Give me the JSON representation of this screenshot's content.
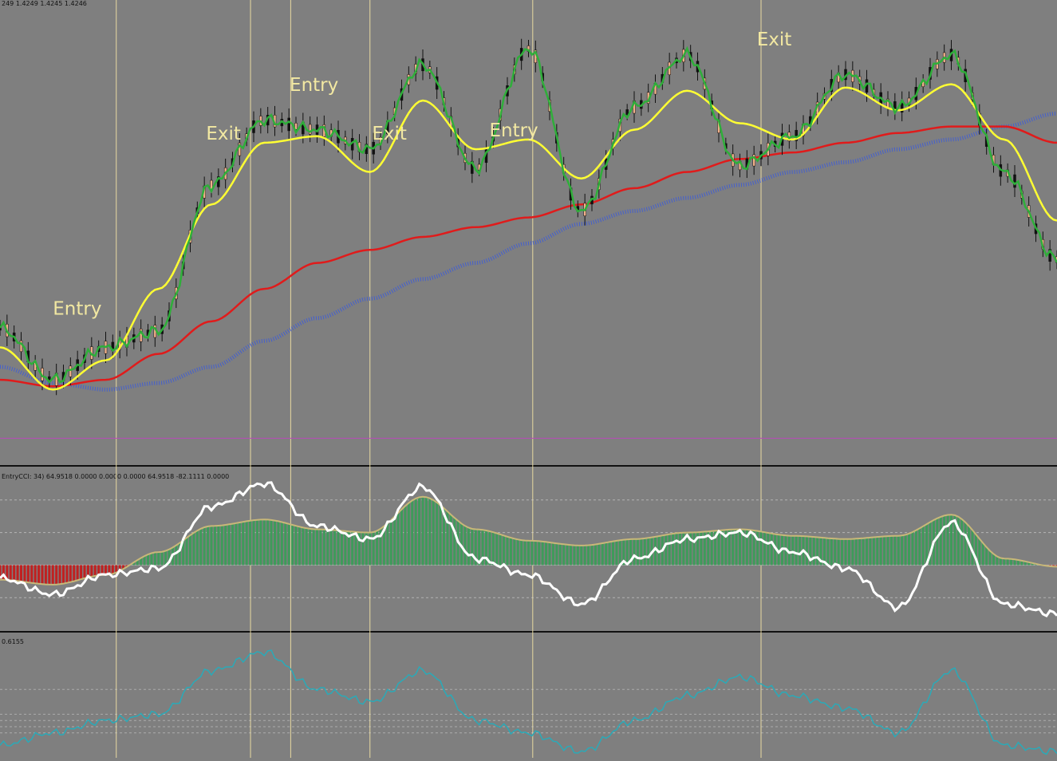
{
  "chart_data": {
    "type": "line",
    "header_text": "249 1.4249 1.4245 1.4246",
    "annotations": [
      "Entry",
      "Exit",
      "Entry",
      "Exit",
      "Entry",
      "Exit"
    ],
    "x": [
      0,
      5,
      10,
      15,
      20,
      25,
      30,
      35,
      40,
      45,
      50,
      55,
      60,
      65,
      70,
      75,
      80,
      85,
      90,
      95,
      100
    ],
    "colors": {
      "background": "#7f7f7f",
      "grid": "#d8d8d8",
      "separator": "#111111",
      "vertical_markers": "#e8d9a0",
      "price_fast_ma": "#2fae3a",
      "price_slow_ma": "#ffff33",
      "price_trend_ma": "#e01b1b",
      "price_dots_up": "#3b5bdb",
      "price_dots_down": "#e03030",
      "price_cyan_ma": "#35c3d9",
      "price_magenta_ma": "#cc33cc",
      "baseline": "#b84ab8",
      "cci_bars_up": "#3e9b5a",
      "cci_bars_down": "#c02020",
      "cci_outline": "#c8b878",
      "cci_line": "#ffffff",
      "osc_line": "#2aaab8",
      "text": "#f2e8a2"
    },
    "price_panel": {
      "series": [
        {
          "values": [
            1.4232,
            1.4216,
            1.4226,
            1.4231,
            1.4276,
            1.4296,
            1.4293,
            1.4287,
            1.4313,
            1.4281,
            1.4318,
            1.4268,
            1.43,
            1.4316,
            1.4282,
            1.4291,
            1.431,
            1.43,
            1.4316,
            1.428,
            1.4253
          ],
          "color": "#2fae3a"
        },
        {
          "values": [
            1.4226,
            1.4213,
            1.4222,
            1.4244,
            1.427,
            1.4289,
            1.4291,
            1.428,
            1.4302,
            1.4287,
            1.429,
            1.4278,
            1.4293,
            1.4305,
            1.4295,
            1.429,
            1.4306,
            1.4299,
            1.4307,
            1.429,
            1.4265
          ],
          "color": "#ffff33"
        },
        {
          "values": [
            1.4216,
            1.4214,
            1.4216,
            1.4224,
            1.4234,
            1.4244,
            1.4252,
            1.4256,
            1.426,
            1.4263,
            1.4266,
            1.427,
            1.4275,
            1.428,
            1.4284,
            1.4286,
            1.4289,
            1.4292,
            1.4294,
            1.4294,
            1.4289
          ],
          "color": "#e01b1b"
        },
        {
          "values": [
            1.422,
            1.4215,
            1.4213,
            1.4215,
            1.422,
            1.4228,
            1.4235,
            1.4241,
            1.4247,
            1.4252,
            1.4258,
            1.4264,
            1.4268,
            1.4272,
            1.4276,
            1.428,
            1.4283,
            1.4287,
            1.429,
            1.4294,
            1.4298
          ],
          "color": "#3b5bdb"
        },
        {
          "values": [
            1.4198,
            1.4198,
            1.4198,
            1.4198,
            1.4198,
            1.4198,
            1.4198,
            1.4198,
            1.4198,
            1.4198,
            1.4198,
            1.4198,
            1.4198,
            1.4198,
            1.4198,
            1.4198,
            1.4198,
            1.4198,
            1.4198,
            1.4198,
            1.4198
          ],
          "color": "#b84ab8"
        }
      ],
      "ylim": [
        1.419,
        1.433
      ]
    },
    "cci_panel": {
      "header_text": "EntryCCI: 34)  64.9518 0.0000 0.0000 0.0000 64.9518 -82.1111 0.0000",
      "series": [
        {
          "values": [
            -40,
            -90,
            -30,
            -10,
            180,
            250,
            120,
            80,
            240,
            20,
            -30,
            -120,
            20,
            80,
            100,
            40,
            -10,
            -130,
            130,
            -120,
            -150
          ],
          "color": "#ffffff"
        },
        {
          "values": [
            -45,
            -60,
            -30,
            40,
            120,
            140,
            110,
            100,
            210,
            110,
            75,
            60,
            80,
            100,
            110,
            90,
            80,
            90,
            155,
            20,
            -5
          ],
          "color": "#c8b878"
        }
      ],
      "ylim": [
        -200,
        300
      ]
    },
    "osc_panel": {
      "header_text": "0.6155",
      "series": [
        {
          "values": [
            0.1,
            0.2,
            0.3,
            0.35,
            0.7,
            0.85,
            0.55,
            0.45,
            0.7,
            0.3,
            0.2,
            0.05,
            0.3,
            0.5,
            0.65,
            0.5,
            0.4,
            0.2,
            0.7,
            0.1,
            0.05
          ],
          "color": "#2aaab8"
        }
      ],
      "ylim": [
        0.0,
        1.0
      ]
    }
  }
}
